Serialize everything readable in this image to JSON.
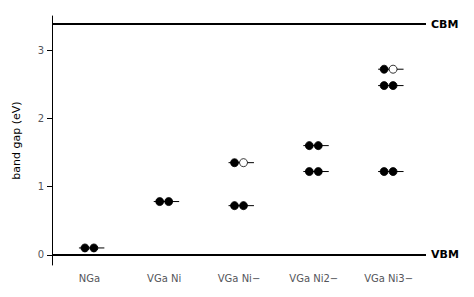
{
  "chart_data": {
    "type": "levels",
    "categories": [
      "NGa",
      "VGa Ni",
      "VGa Ni−",
      "VGa Ni2−",
      "VGa Ni3−"
    ],
    "values": [
      [
        0.1
      ],
      [
        0.78
      ],
      [
        0.72,
        1.35
      ],
      [
        1.22,
        1.6
      ],
      [
        1.22,
        2.48,
        2.72
      ]
    ],
    "filled": [
      [
        [
          true,
          true
        ]
      ],
      [
        [
          true,
          true
        ]
      ],
      [
        [
          true,
          true
        ],
        [
          true,
          false
        ]
      ],
      [
        [
          true,
          true
        ],
        [
          true,
          true
        ]
      ],
      [
        [
          true,
          true
        ],
        [
          true,
          true
        ],
        [
          true,
          false
        ]
      ]
    ],
    "annotations": [
      {
        "text": "CBM",
        "y": 3.38
      },
      {
        "text": "VBM",
        "y": 0.0
      }
    ],
    "ylabel": "band gap (eV)",
    "ylim": [
      -0.15,
      3.5
    ],
    "yticks": [
      0,
      1,
      2,
      3
    ],
    "grid": false,
    "color": "#000000"
  }
}
